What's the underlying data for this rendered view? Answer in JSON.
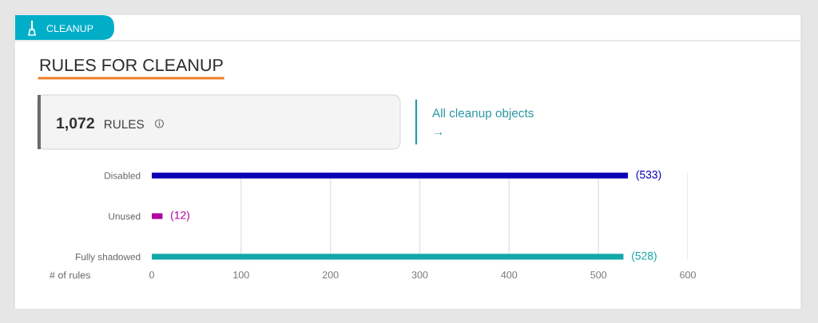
{
  "chart_data": {
    "type": "bar",
    "orientation": "horizontal",
    "title": "RULES FOR CLEANUP",
    "categories": [
      "Disabled",
      "Unused",
      "Fully shadowed"
    ],
    "values": [
      533,
      12,
      528
    ],
    "colors": [
      "#0a00b4",
      "#b000a0",
      "#12a8a8"
    ],
    "value_labels": [
      "(533)",
      "(12)",
      "(528)"
    ],
    "xlabel": "# of rules",
    "xlim": [
      0,
      600
    ],
    "xticks": [
      0,
      100,
      200,
      300,
      400,
      500,
      600
    ],
    "grid": "x",
    "annotations": [
      "CLEANUP",
      "1,072",
      "RULES",
      "All cleanup objects",
      "→"
    ]
  }
}
